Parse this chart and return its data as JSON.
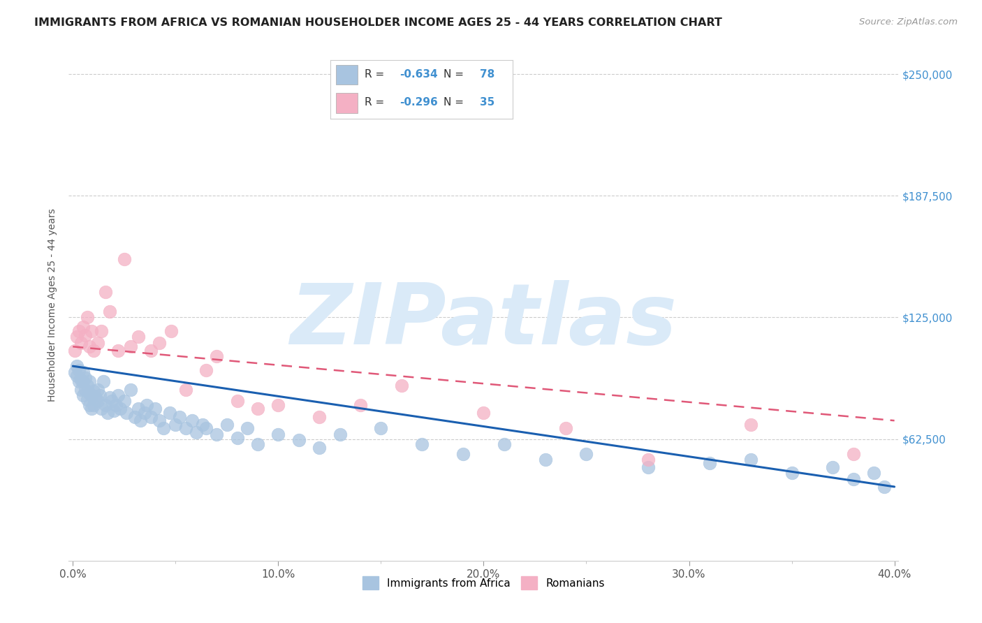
{
  "title": "IMMIGRANTS FROM AFRICA VS ROMANIAN HOUSEHOLDER INCOME AGES 25 - 44 YEARS CORRELATION CHART",
  "source": "Source: ZipAtlas.com",
  "ylabel": "Householder Income Ages 25 - 44 years",
  "xlabel_ticks": [
    "0.0%",
    "",
    "",
    "",
    "",
    "10.0%",
    "",
    "",
    "",
    "",
    "20.0%",
    "",
    "",
    "",
    "",
    "30.0%",
    "",
    "",
    "",
    "",
    "40.0%"
  ],
  "xlabel_vals": [
    0.0,
    0.02,
    0.04,
    0.06,
    0.08,
    0.1,
    0.12,
    0.14,
    0.16,
    0.18,
    0.2,
    0.22,
    0.24,
    0.26,
    0.28,
    0.3,
    0.32,
    0.34,
    0.36,
    0.38,
    0.4
  ],
  "xlabel_major_ticks": [
    0.0,
    0.1,
    0.2,
    0.3,
    0.4
  ],
  "xlabel_major_labels": [
    "0.0%",
    "10.0%",
    "20.0%",
    "30.0%",
    "40.0%"
  ],
  "ytick_labels": [
    "$62,500",
    "$125,000",
    "$187,500",
    "$250,000"
  ],
  "ytick_vals": [
    62500,
    125000,
    187500,
    250000
  ],
  "xlim": [
    -0.002,
    0.402
  ],
  "ylim": [
    0,
    262500
  ],
  "africa_label": "Immigrants from Africa",
  "romania_label": "Romanians",
  "africa_R": -0.634,
  "africa_N": 78,
  "romania_R": -0.296,
  "romania_N": 35,
  "africa_color": "#a8c4e0",
  "romania_color": "#f4b0c4",
  "africa_line_color": "#1a5fb0",
  "romania_line_color": "#e05878",
  "background_color": "#ffffff",
  "grid_color": "#cccccc",
  "title_color": "#222222",
  "axis_label_color": "#555555",
  "right_tick_color": "#4090d0",
  "watermark_color": "#daeaf8",
  "watermark_text": "ZIPatlas",
  "legend_R_color": "#333333",
  "legend_N_color": "#4090d0",
  "africa_x": [
    0.001,
    0.002,
    0.002,
    0.003,
    0.003,
    0.004,
    0.004,
    0.005,
    0.005,
    0.005,
    0.006,
    0.006,
    0.007,
    0.007,
    0.008,
    0.008,
    0.008,
    0.009,
    0.009,
    0.01,
    0.01,
    0.011,
    0.012,
    0.012,
    0.013,
    0.014,
    0.015,
    0.016,
    0.017,
    0.018,
    0.019,
    0.02,
    0.021,
    0.022,
    0.023,
    0.025,
    0.026,
    0.028,
    0.03,
    0.032,
    0.033,
    0.035,
    0.036,
    0.038,
    0.04,
    0.042,
    0.044,
    0.047,
    0.05,
    0.052,
    0.055,
    0.058,
    0.06,
    0.063,
    0.065,
    0.07,
    0.075,
    0.08,
    0.085,
    0.09,
    0.1,
    0.11,
    0.12,
    0.13,
    0.15,
    0.17,
    0.19,
    0.21,
    0.23,
    0.25,
    0.28,
    0.31,
    0.33,
    0.35,
    0.37,
    0.38,
    0.39,
    0.395
  ],
  "africa_y": [
    97000,
    95000,
    100000,
    92000,
    98000,
    88000,
    93000,
    85000,
    92000,
    97000,
    88000,
    94000,
    83000,
    90000,
    80000,
    86000,
    92000,
    78000,
    85000,
    80000,
    87000,
    84000,
    88000,
    82000,
    85000,
    78000,
    92000,
    80000,
    76000,
    84000,
    82000,
    77000,
    80000,
    85000,
    78000,
    82000,
    76000,
    88000,
    74000,
    78000,
    72000,
    76000,
    80000,
    74000,
    78000,
    72000,
    68000,
    76000,
    70000,
    74000,
    68000,
    72000,
    66000,
    70000,
    68000,
    65000,
    70000,
    63000,
    68000,
    60000,
    65000,
    62000,
    58000,
    65000,
    68000,
    60000,
    55000,
    60000,
    52000,
    55000,
    48000,
    50000,
    52000,
    45000,
    48000,
    42000,
    45000,
    38000
  ],
  "romania_x": [
    0.001,
    0.002,
    0.003,
    0.004,
    0.005,
    0.006,
    0.007,
    0.008,
    0.009,
    0.01,
    0.012,
    0.014,
    0.016,
    0.018,
    0.022,
    0.025,
    0.028,
    0.032,
    0.038,
    0.042,
    0.048,
    0.055,
    0.065,
    0.07,
    0.08,
    0.09,
    0.1,
    0.12,
    0.14,
    0.16,
    0.2,
    0.24,
    0.28,
    0.33,
    0.38
  ],
  "romania_y": [
    108000,
    115000,
    118000,
    112000,
    120000,
    116000,
    125000,
    110000,
    118000,
    108000,
    112000,
    118000,
    138000,
    128000,
    108000,
    155000,
    110000,
    115000,
    108000,
    112000,
    118000,
    88000,
    98000,
    105000,
    82000,
    78000,
    80000,
    74000,
    80000,
    90000,
    76000,
    68000,
    52000,
    70000,
    55000
  ]
}
